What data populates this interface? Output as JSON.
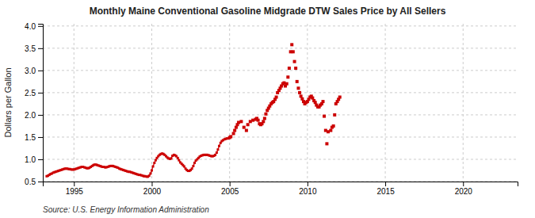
{
  "chart_data": {
    "type": "line",
    "title": "Monthly Maine Conventional Gasoline Midgrade DTW Sales Price by All Sellers",
    "ylabel": "Dollars per Gallon",
    "source": "Source: U.S. Energy Information Administration",
    "xlim": [
      1993.0,
      2023.5
    ],
    "ylim": [
      0.5,
      4.05
    ],
    "xticks": [
      1995,
      2000,
      2005,
      2010,
      2015,
      2020
    ],
    "yticks": [
      0.5,
      {
        "value": 1.0,
        "label": "1.0"
      },
      1.5,
      {
        "value": 2.0,
        "label": "2.0"
      },
      2.5,
      {
        "value": 3.0,
        "label": "3.0"
      },
      3.5,
      {
        "value": 4.0,
        "label": "4.0"
      }
    ],
    "grid": true,
    "series": [
      {
        "type": "line",
        "marker": "square",
        "line_style": "solid",
        "color": "#CC0000",
        "x": [
          1993.25,
          1993.33,
          1993.42,
          1993.5,
          1993.58,
          1993.67,
          1993.75,
          1993.83,
          1993.92,
          1994.0,
          1994.08,
          1994.17,
          1994.25,
          1994.33,
          1994.42,
          1994.5,
          1994.58,
          1994.67,
          1994.75,
          1994.83,
          1994.92,
          1995.0,
          1995.08,
          1995.17,
          1995.25,
          1995.33,
          1995.42,
          1995.5,
          1995.58,
          1995.67,
          1995.75,
          1995.83,
          1995.92,
          1996.0,
          1996.08,
          1996.17,
          1996.25,
          1996.33,
          1996.42,
          1996.5,
          1996.58,
          1996.67,
          1996.75,
          1996.83,
          1996.92,
          1997.0,
          1997.08,
          1997.17,
          1997.25,
          1997.33,
          1997.42,
          1997.5,
          1997.58,
          1997.67,
          1997.75,
          1997.83,
          1997.92,
          1998.0,
          1998.08,
          1998.17,
          1998.25,
          1998.33,
          1998.42,
          1998.5,
          1998.58,
          1998.67,
          1998.75,
          1998.83,
          1998.92,
          1999.0,
          1999.08,
          1999.17,
          1999.25,
          1999.33,
          1999.42,
          1999.5,
          1999.58,
          1999.67,
          1999.75,
          1999.83,
          1999.92,
          2000.0,
          2000.08,
          2000.17,
          2000.25,
          2000.33,
          2000.42,
          2000.5,
          2000.58,
          2000.67,
          2000.75,
          2000.83,
          2000.92,
          2001.0,
          2001.08,
          2001.17,
          2001.25,
          2001.33,
          2001.42,
          2001.5,
          2001.58,
          2001.67,
          2001.75,
          2001.83,
          2001.92,
          2002.0,
          2002.08,
          2002.17,
          2002.25,
          2002.33,
          2002.42,
          2002.5,
          2002.58,
          2002.67,
          2002.75,
          2002.83,
          2002.92,
          2003.0,
          2003.08,
          2003.17,
          2003.25,
          2003.33,
          2003.42,
          2003.5,
          2003.58,
          2003.67,
          2003.75,
          2003.83,
          2003.92,
          2004.0,
          2004.08,
          2004.17,
          2004.25,
          2004.33,
          2004.42,
          2004.5,
          2004.58,
          2004.67,
          2004.75,
          2004.83,
          2004.92
        ],
        "values": [
          0.62,
          0.63,
          0.65,
          0.67,
          0.68,
          0.7,
          0.71,
          0.72,
          0.73,
          0.74,
          0.75,
          0.76,
          0.77,
          0.78,
          0.79,
          0.79,
          0.79,
          0.78,
          0.78,
          0.77,
          0.77,
          0.77,
          0.78,
          0.79,
          0.8,
          0.81,
          0.82,
          0.83,
          0.83,
          0.82,
          0.81,
          0.8,
          0.8,
          0.81,
          0.83,
          0.85,
          0.87,
          0.88,
          0.88,
          0.87,
          0.86,
          0.85,
          0.84,
          0.83,
          0.83,
          0.82,
          0.82,
          0.83,
          0.84,
          0.85,
          0.85,
          0.85,
          0.84,
          0.83,
          0.82,
          0.81,
          0.79,
          0.78,
          0.77,
          0.76,
          0.75,
          0.74,
          0.73,
          0.72,
          0.72,
          0.71,
          0.7,
          0.69,
          0.68,
          0.67,
          0.66,
          0.65,
          0.65,
          0.64,
          0.63,
          0.62,
          0.62,
          0.61,
          0.61,
          0.63,
          0.68,
          0.75,
          0.84,
          0.92,
          0.98,
          1.03,
          1.07,
          1.1,
          1.12,
          1.13,
          1.12,
          1.1,
          1.07,
          1.04,
          1.02,
          1.01,
          1.02,
          1.08,
          1.1,
          1.09,
          1.07,
          1.03,
          0.98,
          0.93,
          0.9,
          0.87,
          0.84,
          0.79,
          0.76,
          0.74,
          0.74,
          0.76,
          0.79,
          0.85,
          0.92,
          0.97,
          1.0,
          1.03,
          1.06,
          1.08,
          1.09,
          1.1,
          1.1,
          1.1,
          1.1,
          1.09,
          1.08,
          1.07,
          1.07,
          1.08,
          1.1,
          1.15,
          1.22,
          1.3,
          1.37,
          1.41,
          1.43,
          1.45,
          1.46,
          1.47,
          1.47
        ]
      },
      {
        "type": "scatter",
        "marker": "square",
        "color": "#CC0000",
        "x": [
          2005.0,
          2005.08,
          2005.25,
          2005.33,
          2005.42,
          2005.5,
          2005.58,
          2005.75,
          2005.92,
          2006.08,
          2006.17,
          2006.33,
          2006.5,
          2006.67,
          2006.75,
          2006.83,
          2006.92,
          2007.0,
          2007.08,
          2007.17,
          2007.25,
          2007.33,
          2007.42,
          2007.5,
          2007.58,
          2007.67,
          2007.75,
          2007.83,
          2007.92,
          2008.0,
          2008.08,
          2008.17,
          2008.25,
          2008.33,
          2008.42,
          2008.5,
          2008.58,
          2008.67,
          2008.75,
          2008.83,
          2008.92,
          2009.0,
          2009.08,
          2009.17,
          2009.25,
          2009.33,
          2009.42,
          2009.5,
          2009.58,
          2009.67,
          2009.75,
          2009.83,
          2009.92,
          2010.0,
          2010.08,
          2010.17,
          2010.25,
          2010.33,
          2010.42,
          2010.5,
          2010.58,
          2010.67,
          2010.75,
          2010.83,
          2010.92,
          2011.0,
          2011.08,
          2011.17,
          2011.25,
          2011.33,
          2011.5,
          2011.58,
          2011.67,
          2011.75,
          2011.83,
          2011.92,
          2012.0,
          2012.08
        ],
        "values": [
          1.49,
          1.51,
          1.58,
          1.65,
          1.72,
          1.78,
          1.83,
          1.85,
          1.72,
          1.65,
          1.78,
          1.85,
          1.88,
          1.9,
          1.92,
          1.88,
          1.8,
          1.78,
          1.8,
          1.85,
          1.92,
          2.02,
          2.1,
          2.15,
          2.2,
          2.25,
          2.28,
          2.3,
          2.35,
          2.4,
          2.5,
          2.55,
          2.6,
          2.65,
          2.7,
          2.72,
          2.65,
          2.7,
          2.85,
          3.05,
          3.42,
          3.58,
          3.42,
          3.2,
          3.05,
          2.75,
          2.6,
          2.5,
          2.42,
          2.36,
          2.3,
          2.25,
          2.28,
          2.3,
          2.35,
          2.4,
          2.42,
          2.38,
          2.32,
          2.28,
          2.22,
          2.18,
          2.18,
          2.22,
          2.25,
          2.3,
          1.97,
          1.65,
          1.35,
          1.62,
          1.65,
          1.72,
          1.75,
          2.0,
          2.25,
          2.3,
          2.35,
          2.4
        ]
      }
    ]
  }
}
